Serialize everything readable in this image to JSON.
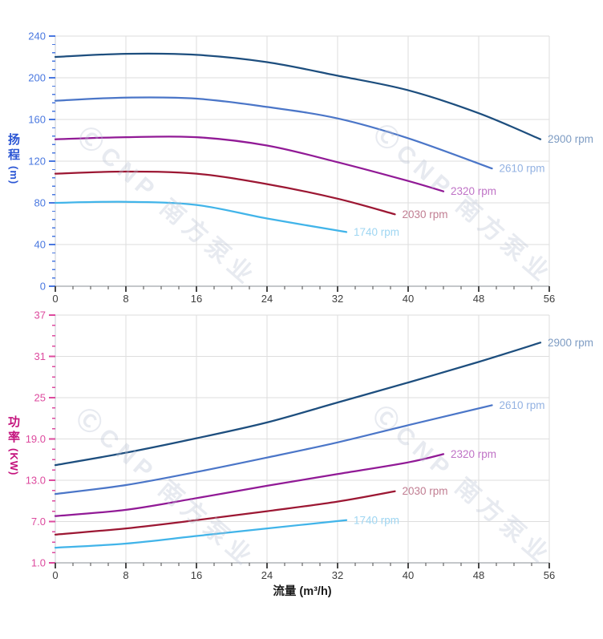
{
  "watermark": {
    "text": "ⒸCNP 南方泵业"
  },
  "x_axis": {
    "title": "流量 (m³/h)",
    "min": 0,
    "max": 56,
    "major_step": 8,
    "minor_step": 2,
    "tick_labels": [
      "0",
      "8",
      "16",
      "24",
      "32",
      "40",
      "48",
      "56"
    ],
    "tick_label_color": "#3d3d3d",
    "line_color": "#8a8f96",
    "tick_color": "#4a4a4a"
  },
  "grid_color": "#dedede",
  "y_axis_line_color": "#c8cdd6",
  "chart_data": [
    {
      "type": "line",
      "name": "head-curve-chart",
      "ylabel": "扬程",
      "ylabel_unit": "(m)",
      "xlabel": "流量 (m³/h)",
      "legend_position": "line-end",
      "grid": true,
      "ylim": [
        0,
        240
      ],
      "y_major_step": 40,
      "y_minor_step": 8,
      "y_tick_labels": [
        "0",
        "40",
        "80",
        "120",
        "160",
        "200",
        "240"
      ],
      "axis_tick_color": "#4a78e0",
      "axis_title_color": "#2b56d4",
      "series": [
        {
          "name": "2900 rpm",
          "color": "#1d4e7e",
          "label_color": "#7e9cc3",
          "points": [
            [
              0,
              220
            ],
            [
              8,
              223
            ],
            [
              16,
              222
            ],
            [
              24,
              215
            ],
            [
              32,
              202
            ],
            [
              40,
              188
            ],
            [
              48,
              166
            ],
            [
              55,
              141
            ]
          ]
        },
        {
          "name": "2610 rpm",
          "color": "#4b76c8",
          "label_color": "#93b2e2",
          "points": [
            [
              0,
              178
            ],
            [
              8,
              181
            ],
            [
              16,
              180
            ],
            [
              24,
              172
            ],
            [
              32,
              161
            ],
            [
              40,
              142
            ],
            [
              49.5,
              113
            ]
          ]
        },
        {
          "name": "2320 rpm",
          "color": "#911a96",
          "label_color": "#bf72c6",
          "points": [
            [
              0,
              141
            ],
            [
              8,
              143
            ],
            [
              16,
              143
            ],
            [
              24,
              135
            ],
            [
              32,
              119
            ],
            [
              40,
              101
            ],
            [
              44,
              91
            ]
          ]
        },
        {
          "name": "2030 rpm",
          "color": "#9c1733",
          "label_color": "#c17e92",
          "points": [
            [
              0,
              108
            ],
            [
              8,
              110
            ],
            [
              16,
              108
            ],
            [
              24,
              98
            ],
            [
              32,
              84
            ],
            [
              38.5,
              69
            ]
          ]
        },
        {
          "name": "1740 rpm",
          "color": "#41b4e9",
          "label_color": "#9fd6f2",
          "points": [
            [
              0,
              80
            ],
            [
              8,
              81
            ],
            [
              16,
              78
            ],
            [
              24,
              65
            ],
            [
              33,
              52
            ]
          ]
        }
      ]
    },
    {
      "type": "line",
      "name": "power-curve-chart",
      "ylabel": "功率",
      "ylabel_unit": "(KW)",
      "xlabel": "流量 (m³/h)",
      "legend_position": "line-end",
      "grid": true,
      "ylim": [
        1,
        37
      ],
      "y_major_step": 6,
      "y_minor_step": 1.5,
      "y_tick_labels": [
        "1.0",
        "7.0",
        "13.0",
        "19.0",
        "25",
        "31",
        "37"
      ],
      "axis_tick_color": "#dd4a9e",
      "axis_title_color": "#c4137d",
      "series": [
        {
          "name": "2900 rpm",
          "color": "#1d4e7e",
          "label_color": "#7e9cc3",
          "points": [
            [
              0,
              15.2
            ],
            [
              8,
              17.0
            ],
            [
              16,
              19.1
            ],
            [
              24,
              21.4
            ],
            [
              32,
              24.3
            ],
            [
              40,
              27.2
            ],
            [
              48,
              30.2
            ],
            [
              55,
              33.0
            ]
          ]
        },
        {
          "name": "2610 rpm",
          "color": "#4b76c8",
          "label_color": "#93b2e2",
          "points": [
            [
              0,
              11.0
            ],
            [
              8,
              12.3
            ],
            [
              16,
              14.2
            ],
            [
              24,
              16.3
            ],
            [
              32,
              18.5
            ],
            [
              40,
              21.0
            ],
            [
              49.5,
              23.9
            ]
          ]
        },
        {
          "name": "2320 rpm",
          "color": "#911a96",
          "label_color": "#bf72c6",
          "points": [
            [
              0,
              7.8
            ],
            [
              8,
              8.7
            ],
            [
              16,
              10.4
            ],
            [
              24,
              12.2
            ],
            [
              32,
              13.9
            ],
            [
              40,
              15.6
            ],
            [
              44,
              16.8
            ]
          ]
        },
        {
          "name": "2030 rpm",
          "color": "#9c1733",
          "label_color": "#c17e92",
          "points": [
            [
              0,
              5.1
            ],
            [
              8,
              6.0
            ],
            [
              16,
              7.2
            ],
            [
              24,
              8.5
            ],
            [
              32,
              9.9
            ],
            [
              38.5,
              11.4
            ]
          ]
        },
        {
          "name": "1740 rpm",
          "color": "#41b4e9",
          "label_color": "#9fd6f2",
          "points": [
            [
              0,
              3.2
            ],
            [
              8,
              3.8
            ],
            [
              16,
              4.9
            ],
            [
              24,
              6.0
            ],
            [
              33,
              7.2
            ]
          ]
        }
      ]
    }
  ]
}
